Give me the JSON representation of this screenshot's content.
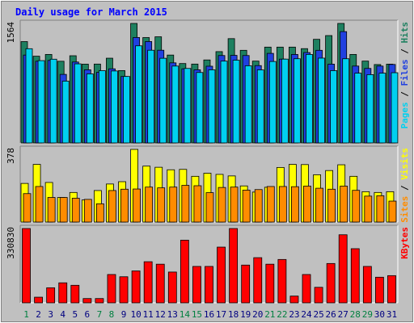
{
  "chart_data": {
    "type": "bar",
    "title": "Daily usage for March 2015",
    "days": [
      "1",
      "2",
      "3",
      "4",
      "5",
      "6",
      "7",
      "8",
      "9",
      "10",
      "11",
      "12",
      "13",
      "14",
      "15",
      "16",
      "17",
      "18",
      "19",
      "20",
      "21",
      "22",
      "23",
      "24",
      "25",
      "26",
      "27",
      "28",
      "29",
      "30",
      "31"
    ],
    "weekend_days": [
      "1",
      "7",
      "8",
      "14",
      "15",
      "21",
      "22",
      "28",
      "29"
    ],
    "colors": {
      "hits": "#1e8060",
      "files": "#2040e0",
      "pages": "#00d0f0",
      "visits": "#ffff00",
      "sites": "#ff8c00",
      "kbytes": "#ff0000",
      "weekday_label": "#000080",
      "weekend_label": "#008040",
      "title": "#0000ff",
      "panel_bg": "#c0c0c0"
    },
    "panels": [
      {
        "id": "hits-files-pages",
        "max_label": "1564",
        "ymax": 1564,
        "legend": [
          {
            "key": "pages",
            "text": "Pages"
          },
          {
            "key": "sep",
            "text": " / "
          },
          {
            "key": "files",
            "text": "Files"
          },
          {
            "key": "sep",
            "text": " / "
          },
          {
            "key": "hits",
            "text": "Hits"
          }
        ],
        "series": [
          {
            "name": "Hits",
            "key": "hits",
            "values": [
              1326,
              1135,
              1158,
              1069,
              1141,
              1031,
              1032,
              1109,
              947,
              1564,
              1379,
              1389,
              1150,
              1039,
              1032,
              1086,
              1195,
              1365,
              1212,
              1071,
              1254,
              1254,
              1254,
              1234,
              1356,
              1405,
              1564,
              1158,
              1071,
              1026,
              1031
            ]
          },
          {
            "name": "Files",
            "key": "files",
            "values": [
              1150,
              1069,
              1080,
              897,
              1059,
              957,
              924,
              970,
              870,
              1380,
              1327,
              1213,
              1048,
              970,
              957,
              1004,
              1144,
              1146,
              1144,
              1012,
              1172,
              1097,
              1158,
              1183,
              1212,
              1031,
              1457,
              1006,
              975,
              1006,
              1027
            ]
          },
          {
            "name": "Pages",
            "key": "pages",
            "values": [
              1233,
              1077,
              1096,
              809,
              1035,
              904,
              946,
              942,
              870,
              1271,
              1213,
              1108,
              1006,
              975,
              922,
              957,
              1071,
              1083,
              1010,
              956,
              1066,
              1097,
              1102,
              1158,
              1110,
              946,
              1102,
              913,
              894,
              913,
              919
            ]
          }
        ]
      },
      {
        "id": "visits-sites",
        "max_label": "378",
        "ymax": 378,
        "legend": [
          {
            "key": "sites",
            "text": "Sites"
          },
          {
            "key": "sep",
            "text": " / "
          },
          {
            "key": "visits",
            "text": "Visits"
          }
        ],
        "series": [
          {
            "name": "Visits",
            "key": "visits",
            "values": [
              201,
              300,
              206,
              128,
              154,
              115,
              164,
              198,
              210,
              378,
              291,
              285,
              272,
              274,
              238,
              254,
              248,
              240,
              188,
              156,
              181,
              284,
              300,
              299,
              246,
              268,
              298,
              238,
              158,
              154,
              158
            ]
          },
          {
            "name": "Sites",
            "key": "sites",
            "values": [
              148,
              185,
              128,
              128,
              124,
              118,
              95,
              164,
              171,
              172,
              182,
              178,
              182,
              191,
              189,
              153,
              180,
              182,
              166,
              169,
              185,
              185,
              184,
              187,
              176,
              171,
              187,
              165,
              135,
              137,
              109
            ]
          }
        ]
      },
      {
        "id": "kbytes",
        "max_label": "330830",
        "ymax": 330830,
        "legend": [
          {
            "key": "kbytes",
            "text": "KBytes"
          }
        ],
        "series": [
          {
            "name": "KBytes",
            "key": "kbytes",
            "values": [
              330830,
              25000,
              67000,
              89000,
              78000,
              19000,
              19000,
              126000,
              116000,
              142000,
              183000,
              172000,
              137000,
              279000,
              162000,
              162000,
              248000,
              330830,
              168000,
              201000,
              172000,
              193000,
              30000,
              126000,
              69000,
              175000,
              303000,
              241000,
              162000,
              114000,
              121000
            ]
          }
        ]
      }
    ]
  }
}
